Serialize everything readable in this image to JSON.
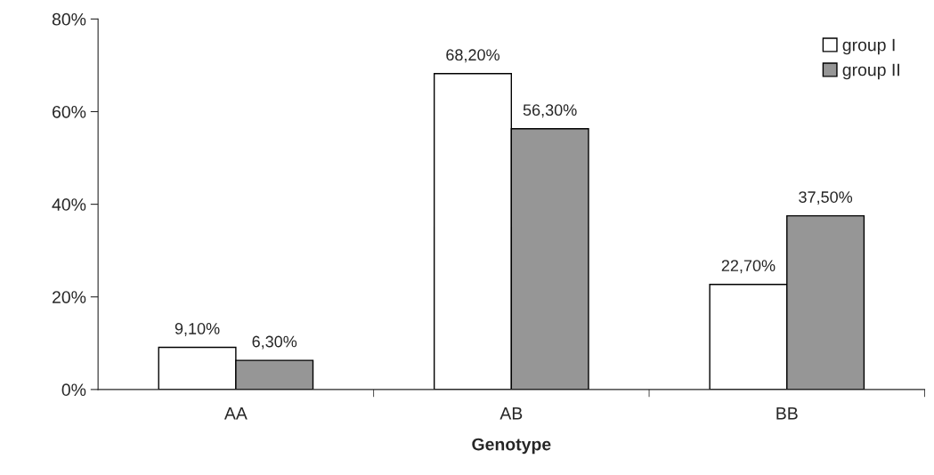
{
  "chart_data": {
    "type": "bar",
    "xlabel": "Genotype",
    "categories": [
      "AA",
      "AB",
      "BB"
    ],
    "series": [
      {
        "name": "group I",
        "color": "#ffffff",
        "values": [
          9.1,
          68.2,
          22.7
        ],
        "value_labels": [
          "9,10%",
          "68,20%",
          "22,70%"
        ]
      },
      {
        "name": "group II",
        "color": "#969696",
        "values": [
          6.3,
          56.3,
          37.5
        ],
        "value_labels": [
          "6,30%",
          "56,30%",
          "37,50%"
        ]
      }
    ],
    "ylim": [
      0,
      80
    ],
    "yticks": [
      {
        "value": 0,
        "label": "0%"
      },
      {
        "value": 20,
        "label": "20%"
      },
      {
        "value": 40,
        "label": "40%"
      },
      {
        "value": 60,
        "label": "60%"
      },
      {
        "value": 80,
        "label": "80%"
      }
    ],
    "grid": false,
    "legend": "top right"
  }
}
